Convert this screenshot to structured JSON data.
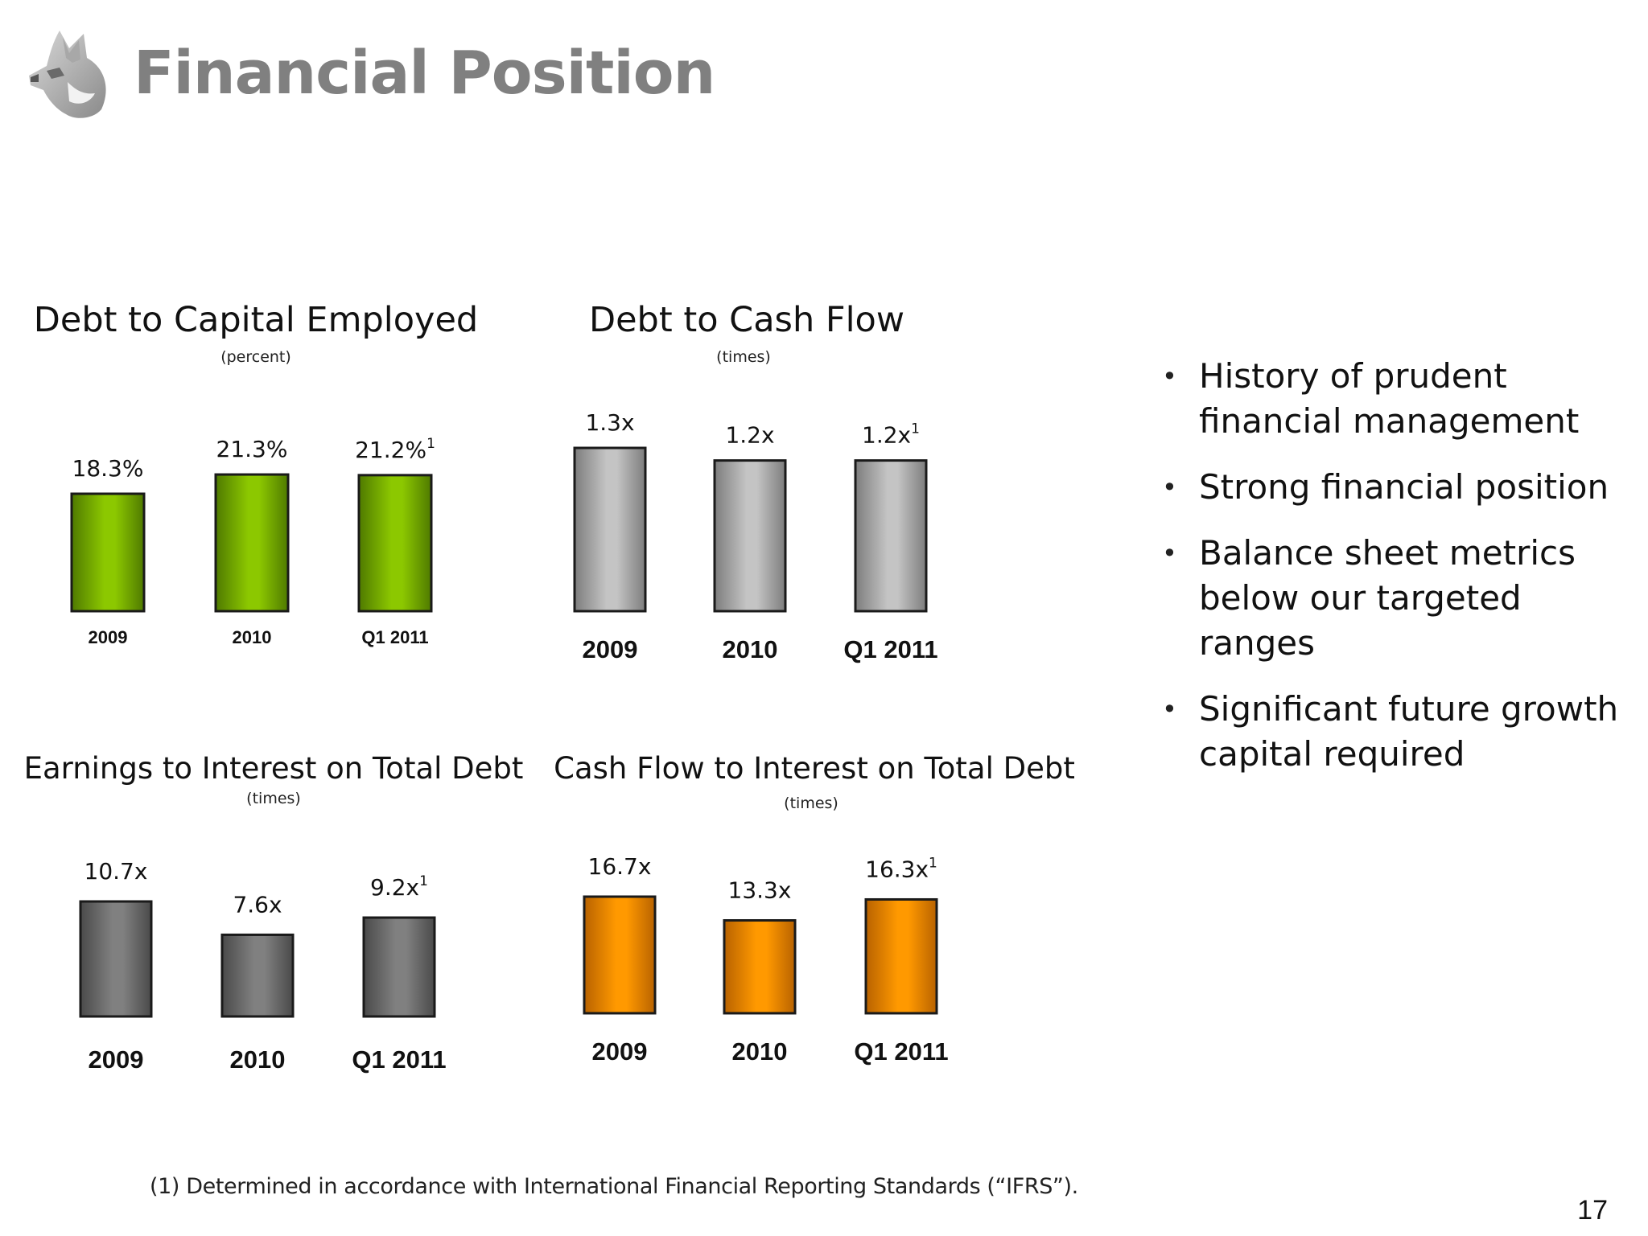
{
  "page": {
    "title": "Financial Position",
    "page_number": "17"
  },
  "logo": {
    "icon": "husky-head-icon"
  },
  "bullets": [
    "History of prudent financial management",
    "Strong financial position",
    "Balance sheet metrics below our targeted ranges",
    "Significant future growth capital required"
  ],
  "footnote": "(1) Determined in accordance with International Financial Reporting Standards (“IFRS”).",
  "chart_data": [
    {
      "id": "debt-to-capital",
      "type": "bar",
      "title": "Debt to Capital Employed",
      "subtitle": "(percent)",
      "categories": [
        "2009",
        "2010",
        "Q1 2011"
      ],
      "values": [
        18.3,
        21.3,
        21.2
      ],
      "value_labels": [
        "18.3%",
        "21.3%",
        "21.2%"
      ],
      "footnote_marks": [
        "",
        "",
        "1"
      ],
      "color": "#8cc800",
      "color_dark": "#4f7a00",
      "label_style": "small",
      "grid": false
    },
    {
      "id": "debt-to-cash-flow",
      "type": "bar",
      "title": "Debt to Cash Flow",
      "subtitle": "(times)",
      "categories": [
        "2009",
        "2010",
        "Q1 2011"
      ],
      "values": [
        1.3,
        1.2,
        1.2
      ],
      "value_labels": [
        "1.3x",
        "1.2x",
        "1.2x"
      ],
      "footnote_marks": [
        "",
        "",
        "1"
      ],
      "color": "#c4c4c4",
      "color_dark": "#7d7d7d",
      "label_style": "large",
      "grid": false
    },
    {
      "id": "earnings-to-interest",
      "type": "bar",
      "title": "Earnings to Interest on Total Debt",
      "subtitle": "(times)",
      "categories": [
        "2009",
        "2010",
        "Q1 2011"
      ],
      "values": [
        10.7,
        7.6,
        9.2
      ],
      "value_labels": [
        "10.7x",
        "7.6x",
        "9.2x"
      ],
      "footnote_marks": [
        "",
        "",
        "1"
      ],
      "color": "#808080",
      "color_dark": "#4a4a4a",
      "label_style": "large",
      "grid": false
    },
    {
      "id": "cash-flow-to-interest",
      "type": "bar",
      "title": "Cash Flow to Interest on Total Debt",
      "subtitle": "(times)",
      "categories": [
        "2009",
        "2010",
        "Q1 2011"
      ],
      "values": [
        16.7,
        13.3,
        16.3
      ],
      "value_labels": [
        "16.7x",
        "13.3x",
        "16.3x"
      ],
      "footnote_marks": [
        "",
        "",
        "1"
      ],
      "color": "#ff9900",
      "color_dark": "#b86200",
      "label_style": "large",
      "grid": false
    }
  ]
}
